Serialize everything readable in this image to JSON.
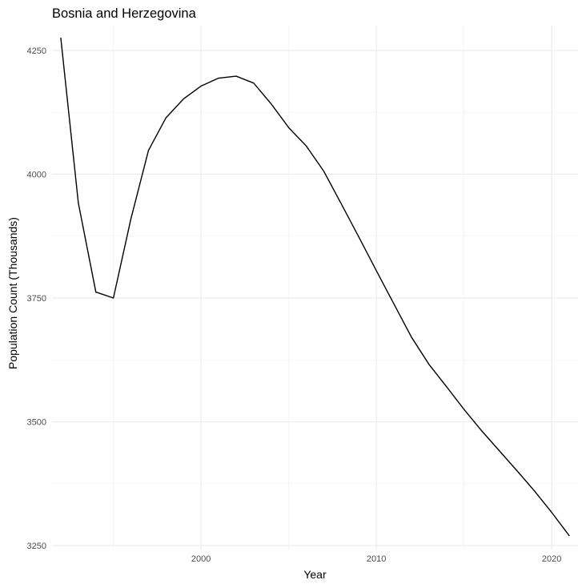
{
  "chart_data": {
    "type": "line",
    "title": "Bosnia and Herzegovina",
    "xlabel": "Year",
    "ylabel": "Population Count (Thousands)",
    "xlim": [
      1991.5,
      2021.5
    ],
    "ylim": [
      3242,
      4300
    ],
    "x_major_ticks": [
      2000,
      2010,
      2020
    ],
    "x_minor_ticks": [
      1995,
      2005,
      2015
    ],
    "y_major_ticks": [
      3250,
      3500,
      3750,
      4000,
      4250
    ],
    "y_minor_ticks": [
      3375,
      3625,
      3875,
      4125
    ],
    "grid": true,
    "legend": "none",
    "line_color": "#000000",
    "series": [
      {
        "x": [
          1992,
          1993,
          1994,
          1995,
          1996,
          1997,
          1998,
          1999,
          2000,
          2001,
          2002,
          2003,
          2004,
          2005,
          2006,
          2007,
          2008,
          2009,
          2010,
          2011,
          2012,
          2013,
          2014,
          2015,
          2016,
          2017,
          2018,
          2019,
          2020,
          2021
        ],
        "values": [
          4275,
          3942,
          3762,
          3750,
          3910,
          4048,
          4114,
          4152,
          4178,
          4194,
          4198,
          4184,
          4142,
          4094,
          4057,
          4006,
          3940,
          3873,
          3805,
          3738,
          3671,
          3616,
          3571,
          3525,
          3482,
          3442,
          3402,
          3361,
          3317,
          3270
        ]
      }
    ]
  }
}
